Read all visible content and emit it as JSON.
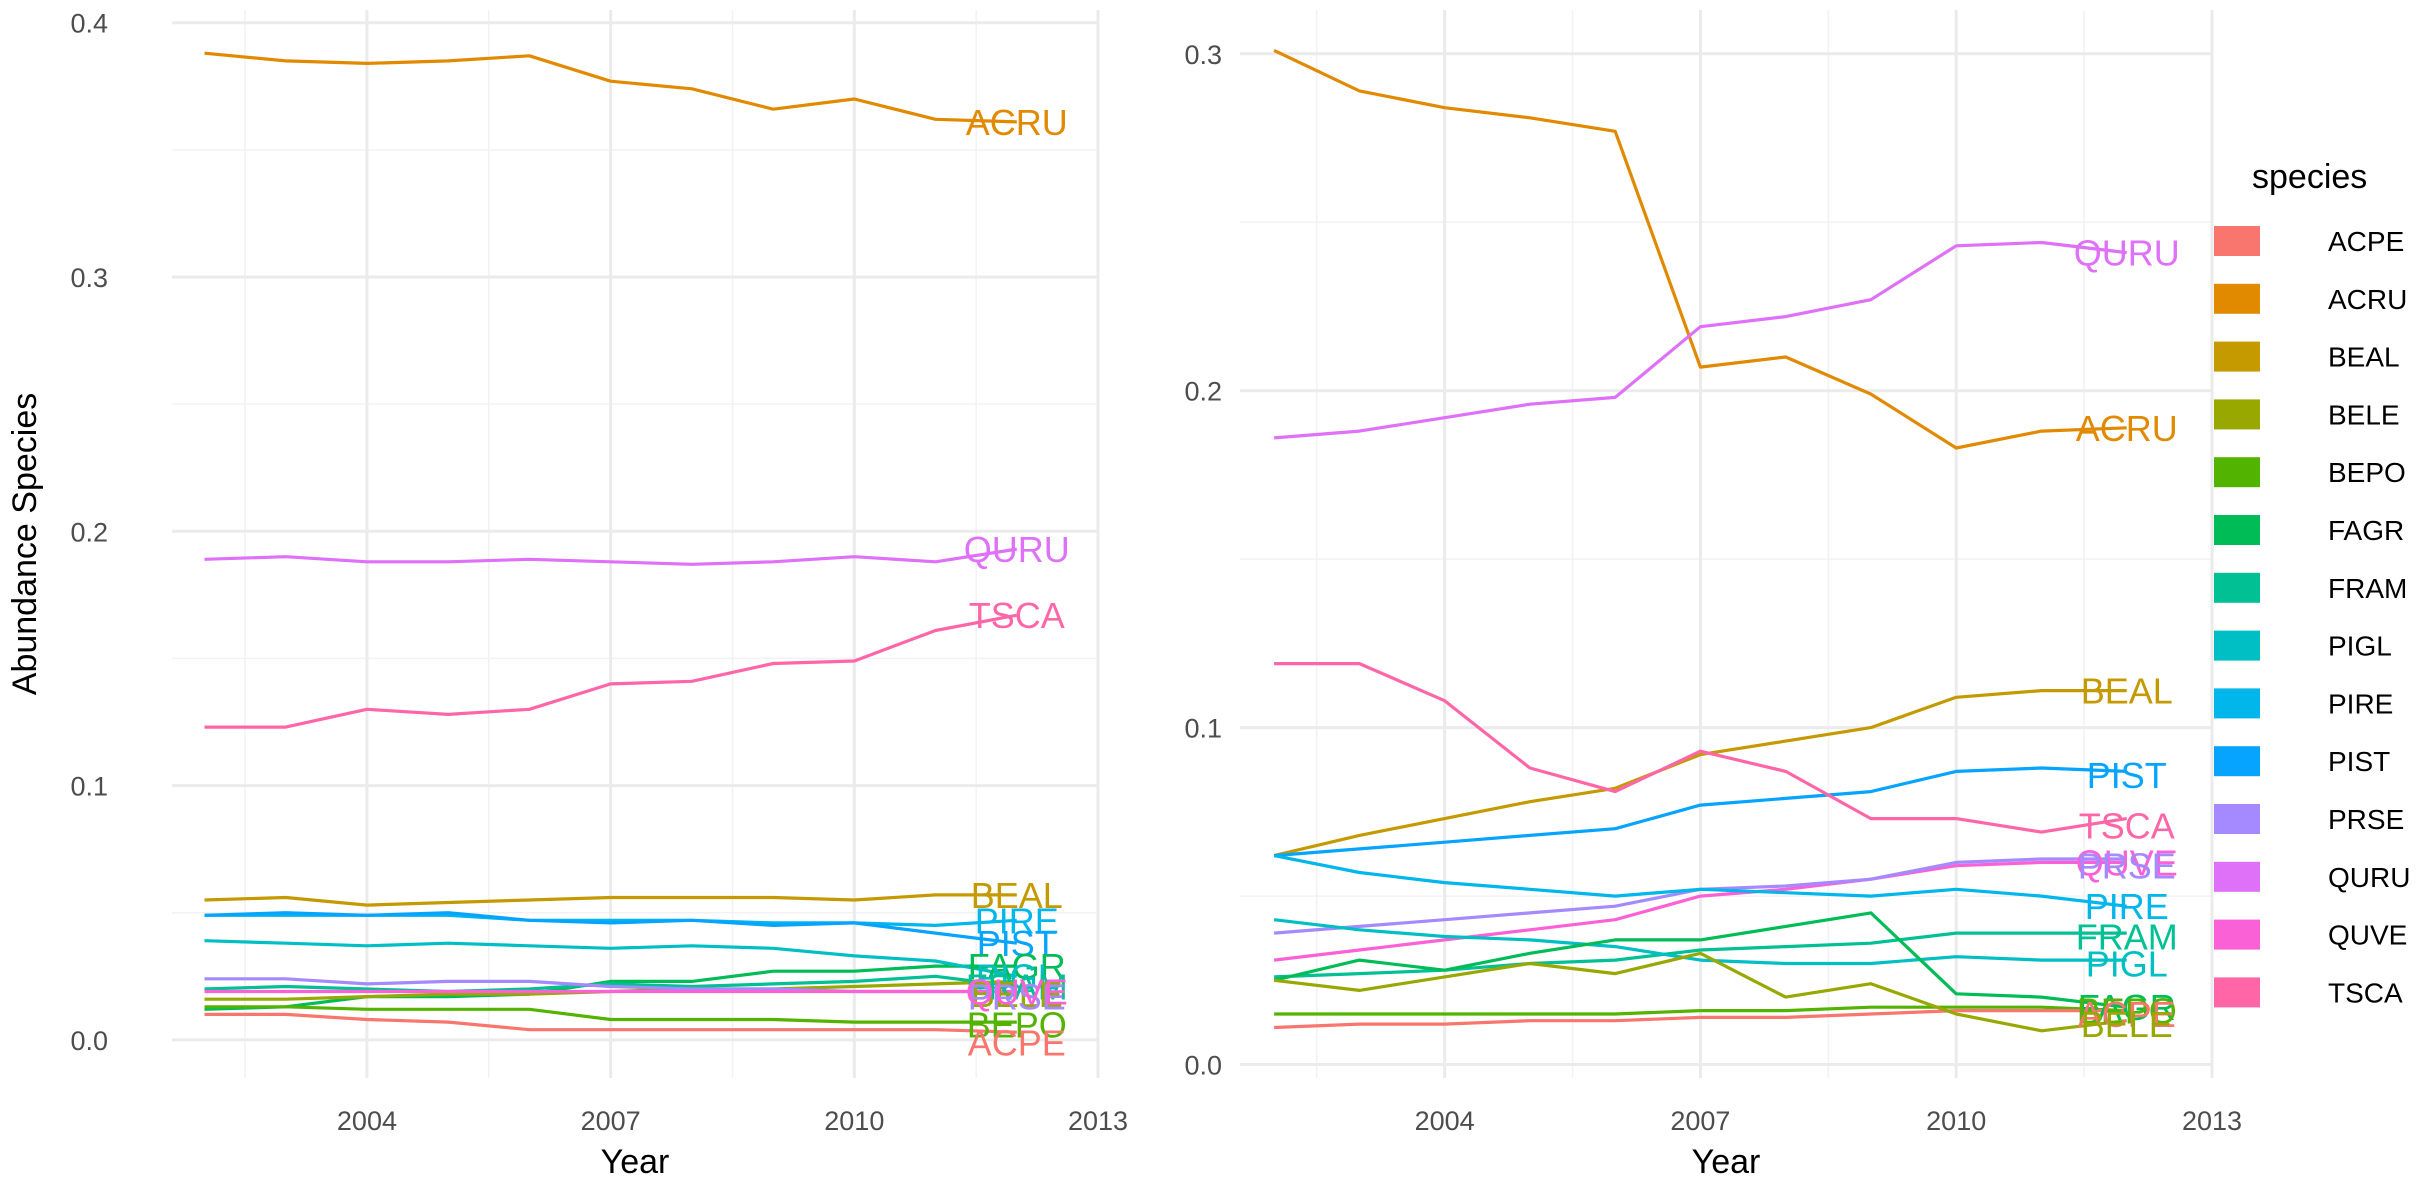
{
  "legend": {
    "title": "species",
    "entries": [
      {
        "name": "ACPE",
        "color": "#F8766D"
      },
      {
        "name": "ACRU",
        "color": "#E18A00"
      },
      {
        "name": "BEAL",
        "color": "#C49A00"
      },
      {
        "name": "BELE",
        "color": "#99A800"
      },
      {
        "name": "BEPO",
        "color": "#53B400"
      },
      {
        "name": "FAGR",
        "color": "#00BC56"
      },
      {
        "name": "FRAM",
        "color": "#00C094"
      },
      {
        "name": "PIGL",
        "color": "#00BFC4"
      },
      {
        "name": "PIRE",
        "color": "#00B6EB"
      },
      {
        "name": "PIST",
        "color": "#06A4FF"
      },
      {
        "name": "PRSE",
        "color": "#A58AFF"
      },
      {
        "name": "QURU",
        "color": "#DF70F8"
      },
      {
        "name": "QUVE",
        "color": "#FB61D7"
      },
      {
        "name": "TSCA",
        "color": "#FF66A8"
      }
    ]
  },
  "chart_data": [
    {
      "type": "line",
      "xlabel": "Year",
      "ylabel": "Abundance Species",
      "xlim": [
        2001.6,
        2013
      ],
      "ylim": [
        -0.015,
        0.405
      ],
      "x_ticks": [
        2004,
        2007,
        2010,
        2013
      ],
      "y_ticks": [
        0.0,
        0.1,
        0.2,
        0.3,
        0.4
      ],
      "y_tick_labels": [
        "0.0",
        "0.1",
        "0.2",
        "0.3",
        "0.4"
      ],
      "grid": true,
      "end_labels": true,
      "x": [
        2002,
        2003,
        2004,
        2005,
        2006,
        2007,
        2008,
        2009,
        2010,
        2011,
        2012
      ],
      "series": [
        {
          "name": "ACRU",
          "label_y": 0.361,
          "values": [
            0.388,
            0.385,
            0.384,
            0.385,
            0.387,
            0.377,
            0.374,
            0.366,
            0.37,
            0.362,
            0.361
          ]
        },
        {
          "name": "QURU",
          "label_y": 0.193,
          "values": [
            0.189,
            0.19,
            0.188,
            0.188,
            0.189,
            0.188,
            0.187,
            0.188,
            0.19,
            0.188,
            0.193
          ]
        },
        {
          "name": "TSCA",
          "label_y": 0.167,
          "values": [
            0.123,
            0.123,
            0.13,
            0.128,
            0.13,
            0.14,
            0.141,
            0.148,
            0.149,
            0.161,
            0.167
          ]
        },
        {
          "name": "BEAL",
          "label_y": 0.057,
          "values": [
            0.055,
            0.056,
            0.053,
            0.054,
            0.055,
            0.056,
            0.056,
            0.056,
            0.055,
            0.057,
            0.057
          ]
        },
        {
          "name": "PIRE",
          "label_y": 0.047,
          "values": [
            0.049,
            0.049,
            0.049,
            0.049,
            0.047,
            0.047,
            0.047,
            0.046,
            0.046,
            0.045,
            0.047
          ]
        },
        {
          "name": "PIST",
          "label_y": 0.038,
          "values": [
            0.049,
            0.05,
            0.049,
            0.05,
            0.047,
            0.046,
            0.047,
            0.045,
            0.046,
            0.042,
            0.038
          ]
        },
        {
          "name": "FAGR",
          "label_y": 0.029,
          "values": [
            0.012,
            0.013,
            0.017,
            0.017,
            0.018,
            0.023,
            0.023,
            0.027,
            0.027,
            0.029,
            0.029
          ]
        },
        {
          "name": "PIGL",
          "label_y": 0.025,
          "values": [
            0.039,
            0.038,
            0.037,
            0.038,
            0.037,
            0.036,
            0.037,
            0.036,
            0.033,
            0.031,
            0.025
          ]
        },
        {
          "name": "FRAM",
          "label_y": 0.021,
          "values": [
            0.02,
            0.021,
            0.02,
            0.019,
            0.02,
            0.022,
            0.021,
            0.022,
            0.023,
            0.025,
            0.021
          ]
        },
        {
          "name": "BELE",
          "label_y": 0.018,
          "values": [
            0.016,
            0.016,
            0.017,
            0.018,
            0.018,
            0.019,
            0.02,
            0.02,
            0.021,
            0.022,
            0.023
          ]
        },
        {
          "name": "PRSE",
          "label_y": 0.017,
          "values": [
            0.024,
            0.024,
            0.022,
            0.023,
            0.023,
            0.021,
            0.02,
            0.02,
            0.019,
            0.019,
            0.019
          ]
        },
        {
          "name": "QUVE",
          "label_y": 0.019,
          "values": [
            0.019,
            0.019,
            0.019,
            0.019,
            0.019,
            0.019,
            0.019,
            0.019,
            0.019,
            0.019,
            0.019
          ]
        },
        {
          "name": "BEPO",
          "label_y": 0.006,
          "values": [
            0.013,
            0.013,
            0.012,
            0.012,
            0.012,
            0.008,
            0.008,
            0.008,
            0.007,
            0.007,
            0.007
          ]
        },
        {
          "name": "ACPE",
          "label_y": -0.001,
          "values": [
            0.01,
            0.01,
            0.008,
            0.007,
            0.004,
            0.004,
            0.004,
            0.004,
            0.004,
            0.004,
            0.003
          ]
        }
      ]
    },
    {
      "type": "line",
      "xlabel": "Year",
      "ylabel": "",
      "xlim": [
        2001.6,
        2013
      ],
      "ylim": [
        -0.004,
        0.313
      ],
      "x_ticks": [
        2004,
        2007,
        2010,
        2013
      ],
      "y_ticks": [
        0.0,
        0.1,
        0.2,
        0.3
      ],
      "y_tick_labels": [
        "0.0",
        "0.1",
        "0.2",
        "0.3"
      ],
      "grid": true,
      "end_labels": true,
      "x": [
        2002,
        2003,
        2004,
        2005,
        2006,
        2007,
        2008,
        2009,
        2010,
        2011,
        2012
      ],
      "series": [
        {
          "name": "ACRU",
          "label_y": 0.189,
          "values": [
            0.301,
            0.289,
            0.284,
            0.281,
            0.277,
            0.207,
            0.21,
            0.199,
            0.183,
            0.188,
            0.189
          ]
        },
        {
          "name": "QURU",
          "label_y": 0.241,
          "values": [
            0.186,
            0.188,
            0.192,
            0.196,
            0.198,
            0.219,
            0.222,
            0.227,
            0.243,
            0.244,
            0.241
          ]
        },
        {
          "name": "BEAL",
          "label_y": 0.111,
          "values": [
            0.062,
            0.068,
            0.073,
            0.078,
            0.082,
            0.092,
            0.096,
            0.1,
            0.109,
            0.111,
            0.111
          ]
        },
        {
          "name": "PIST",
          "label_y": 0.086,
          "values": [
            0.062,
            0.064,
            0.066,
            0.068,
            0.07,
            0.077,
            0.079,
            0.081,
            0.087,
            0.088,
            0.087
          ]
        },
        {
          "name": "TSCA",
          "label_y": 0.071,
          "values": [
            0.119,
            0.119,
            0.108,
            0.088,
            0.081,
            0.093,
            0.087,
            0.073,
            0.073,
            0.069,
            0.073
          ]
        },
        {
          "name": "QUVE",
          "label_y": 0.06,
          "values": [
            0.031,
            0.034,
            0.037,
            0.04,
            0.043,
            0.05,
            0.052,
            0.055,
            0.059,
            0.06,
            0.06
          ]
        },
        {
          "name": "PRSE",
          "label_y": 0.059,
          "values": [
            0.039,
            0.041,
            0.043,
            0.045,
            0.047,
            0.052,
            0.053,
            0.055,
            0.06,
            0.061,
            0.061
          ]
        },
        {
          "name": "PIRE",
          "label_y": 0.047,
          "values": [
            0.062,
            0.057,
            0.054,
            0.052,
            0.05,
            0.052,
            0.051,
            0.05,
            0.052,
            0.05,
            0.047
          ]
        },
        {
          "name": "FRAM",
          "label_y": 0.038,
          "values": [
            0.026,
            0.027,
            0.028,
            0.03,
            0.031,
            0.034,
            0.035,
            0.036,
            0.039,
            0.039,
            0.039
          ]
        },
        {
          "name": "PIGL",
          "label_y": 0.03,
          "values": [
            0.043,
            0.04,
            0.038,
            0.037,
            0.035,
            0.031,
            0.03,
            0.03,
            0.032,
            0.031,
            0.031
          ]
        },
        {
          "name": "FAGR",
          "label_y": 0.017,
          "values": [
            0.025,
            0.031,
            0.028,
            0.033,
            0.037,
            0.037,
            0.041,
            0.045,
            0.021,
            0.02,
            0.017
          ]
        },
        {
          "name": "BEPO",
          "label_y": 0.016,
          "values": [
            0.015,
            0.015,
            0.015,
            0.015,
            0.015,
            0.016,
            0.016,
            0.017,
            0.017,
            0.017,
            0.016
          ]
        },
        {
          "name": "ACPE",
          "label_y": 0.015,
          "values": [
            0.011,
            0.012,
            0.012,
            0.013,
            0.013,
            0.014,
            0.014,
            0.015,
            0.016,
            0.016,
            0.016
          ]
        },
        {
          "name": "BELE",
          "label_y": 0.012,
          "values": [
            0.025,
            0.022,
            0.026,
            0.03,
            0.027,
            0.033,
            0.02,
            0.024,
            0.015,
            0.01,
            0.013
          ]
        }
      ]
    }
  ]
}
